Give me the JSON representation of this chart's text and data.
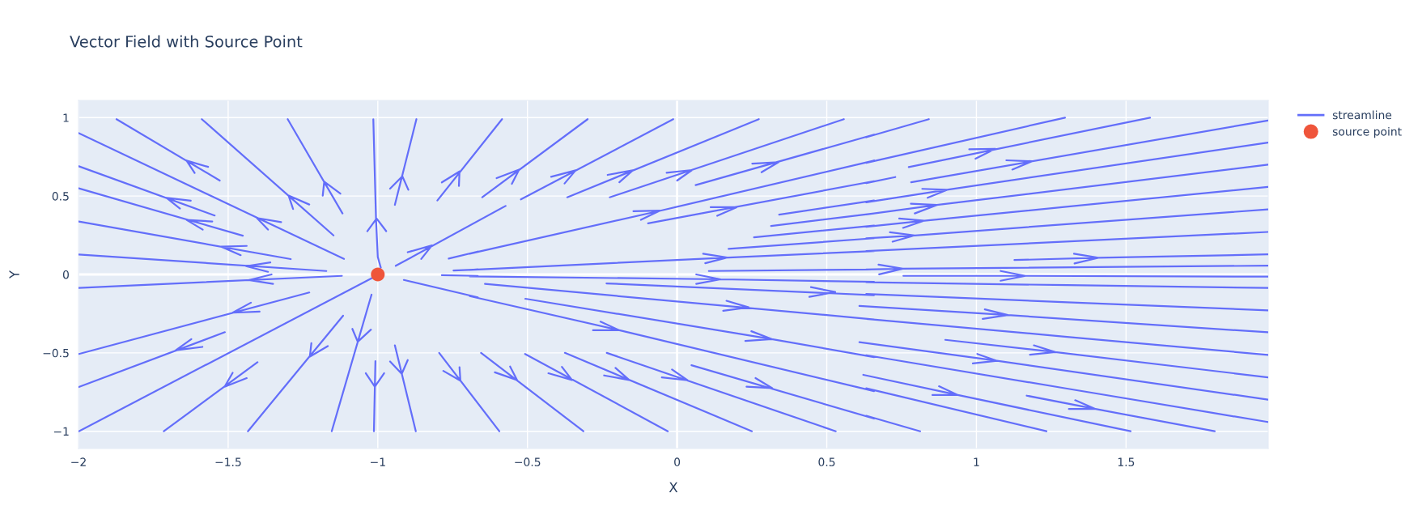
{
  "chart_data": {
    "type": "line",
    "title": "Vector Field with Source Point",
    "xlabel": "X",
    "ylabel": "Y",
    "xlim": [
      -2,
      1.975
    ],
    "ylim": [
      -1.11,
      1.11
    ],
    "xticks": [
      {
        "value": -2,
        "label": "−2"
      },
      {
        "value": -1.5,
        "label": "−1.5"
      },
      {
        "value": -1,
        "label": "−1"
      },
      {
        "value": -0.5,
        "label": "−0.5"
      },
      0,
      0.5,
      1,
      1.5
    ],
    "yticks": [
      {
        "value": -1,
        "label": "−1"
      },
      {
        "value": -0.5,
        "label": "−0.5"
      },
      0,
      0.5,
      1
    ],
    "grid": true,
    "legend": "top right",
    "series": [
      {
        "name": "streamline",
        "type": "line",
        "color": "#636efa",
        "marker": "none",
        "x": [
          -1.873,
          -1.528,
          null,
          -1.567,
          -1.639,
          -1.612,
          null,
          -1.588,
          -1.148,
          null,
          -1.229,
          -1.298,
          -1.283,
          null,
          -1.301,
          -1.118,
          null,
          -1.125,
          -1.179,
          -1.184,
          null,
          -1.015,
          -1.006,
          -1.0,
          -0.99,
          null,
          -1.035,
          -1.004,
          -0.972,
          null,
          -0.871,
          -0.943,
          null,
          -0.959,
          -0.918,
          -0.898,
          null,
          -0.585,
          -0.801,
          null,
          -0.786,
          -0.727,
          -0.729,
          null,
          -0.94,
          -0.573,
          null,
          -0.9,
          -0.819,
          -0.855,
          null,
          -1.999,
          -1.113,
          null,
          -1.323,
          -1.404,
          -1.367,
          null,
          -1.999,
          -1.545,
          null,
          -1.625,
          -1.706,
          -1.661,
          null,
          -1.999,
          -1.451,
          null,
          -1.553,
          -1.639,
          -1.585,
          null,
          -1.999,
          -1.291,
          null,
          -1.438,
          -1.523,
          -1.458,
          null,
          -1.999,
          -1.172,
          null,
          -1.359,
          -1.44,
          -1.367,
          null,
          -1.999,
          -1.12,
          null,
          -1.355,
          -1.431,
          -1.35,
          null,
          -1.999,
          -1.229,
          null,
          -1.424,
          -1.485,
          -1.395,
          null,
          -1.999,
          -1.511,
          null,
          -1.623,
          -1.675,
          -1.586,
          null,
          -1.999,
          -1.008,
          null,
          -1.715,
          -1.402,
          null,
          -1.485,
          -1.512,
          -1.438,
          null,
          -1.434,
          -1.116,
          null,
          -1.222,
          -1.227,
          -1.167,
          null,
          -1.154,
          -1.021,
          null,
          -1.085,
          -1.067,
          -1.023,
          null,
          -1.013,
          -1.008,
          null,
          -1.04,
          -1.01,
          -0.979,
          null,
          -0.873,
          -0.943,
          null,
          -0.959,
          -0.92,
          -0.9,
          null,
          -0.795,
          -0.594,
          null,
          -0.781,
          -0.724,
          -0.727,
          null,
          -0.913,
          -0.666,
          null,
          -0.763,
          -0.666,
          null,
          -0.747,
          -0.666,
          null,
          -0.786,
          -0.666,
          null,
          -0.651,
          -0.299,
          null,
          -0.603,
          -0.528,
          -0.552,
          null,
          -0.522,
          -0.013,
          null,
          -0.421,
          -0.339,
          -0.376,
          null,
          -0.367,
          0.273,
          null,
          -0.232,
          -0.148,
          -0.193,
          null,
          -0.225,
          0.557,
          null,
          -0.035,
          0.05,
          0.0,
          null,
          0.062,
          0.658,
          null,
          0.251,
          0.339,
          0.282,
          null,
          -0.693,
          -0.053,
          0.658,
          null,
          -0.146,
          -0.058,
          -0.121,
          null,
          -0.097,
          0.658,
          null,
          0.112,
          0.199,
          0.134,
          null,
          0.341,
          0.658,
          null,
          0.314,
          0.658,
          null,
          0.257,
          0.658,
          null,
          0.172,
          0.658,
          null,
          -0.693,
          0.172,
          0.658,
          null,
          0.087,
          0.167,
          0.094,
          null,
          0.106,
          0.658,
          null,
          -0.693,
          0.145,
          0.658,
          null,
          0.064,
          0.145,
          0.064,
          null,
          -0.236,
          0.658,
          null,
          0.447,
          0.528,
          0.442,
          null,
          -0.642,
          0.658,
          null,
          0.165,
          0.239,
          0.154,
          null,
          -0.693,
          -0.193,
          0.658,
          null,
          -0.256,
          -0.193,
          -0.281,
          null,
          -0.507,
          0.316,
          0.658,
          null,
          0.248,
          0.316,
          0.228,
          null,
          -0.655,
          -0.313,
          null,
          -0.558,
          -0.535,
          -0.609,
          null,
          -0.508,
          -0.031,
          null,
          -0.385,
          -0.351,
          -0.43,
          null,
          -0.375,
          0.25,
          null,
          -0.206,
          -0.16,
          -0.244,
          null,
          -0.235,
          0.53,
          null,
          -0.017,
          0.035,
          -0.051,
          null,
          0.048,
          0.658,
          null,
          0.262,
          0.318,
          0.232,
          null,
          0.632,
          0.841,
          null,
          0.632,
          1.296,
          null,
          0.976,
          1.063,
          0.997,
          null,
          0.774,
          1.58,
          null,
          1.1,
          1.186,
          1.12,
          null,
          0.632,
          0.729,
          null,
          0.782,
          1.974,
          null,
          0.632,
          0.902,
          1.974,
          null,
          0.819,
          0.902,
          0.837,
          null,
          0.632,
          0.868,
          1.974,
          null,
          0.781,
          0.868,
          0.794,
          null,
          0.632,
          0.826,
          1.974,
          null,
          0.742,
          0.826,
          0.755,
          null,
          0.632,
          0.794,
          1.974,
          null,
          0.711,
          0.794,
          0.72,
          null,
          0.632,
          1.974,
          null,
          1.127,
          1.407,
          1.974,
          null,
          1.326,
          1.407,
          1.328,
          null,
          0.632,
          0.754,
          1.974,
          null,
          0.673,
          0.754,
          0.675,
          null,
          0.756,
          1.164,
          1.974,
          null,
          1.081,
          1.164,
          1.081,
          null,
          0.632,
          1.303,
          1.974,
          null,
          0.632,
          1.303,
          1.974,
          null,
          0.609,
          1.105,
          1.974,
          null,
          1.028,
          1.105,
          1.021,
          null,
          0.632,
          1.303,
          1.974,
          null,
          0.896,
          1.263,
          1.974,
          null,
          1.192,
          1.263,
          1.179,
          null,
          0.609,
          1.069,
          1.974,
          null,
          1.003,
          1.069,
          0.988,
          null,
          0.632,
          1.303,
          1.974,
          null,
          0.622,
          0.938,
          1.515,
          null,
          0.875,
          0.938,
          0.853,
          null,
          0.632,
          1.234,
          null,
          0.632,
          0.812,
          null,
          1.168,
          1.398,
          1.796,
          null,
          1.33,
          1.398,
          1.309
        ],
        "values": [
          0.99,
          0.599,
          null,
          0.686,
          0.726,
          0.647,
          null,
          0.99,
          0.249,
          null,
          0.446,
          0.503,
          0.417,
          null,
          0.99,
          0.389,
          null,
          0.516,
          0.592,
          0.503,
          null,
          0.99,
          0.352,
          0.111,
          0.043,
          null,
          0.276,
          0.357,
          0.276,
          null,
          0.99,
          0.444,
          null,
          0.547,
          0.626,
          0.54,
          null,
          0.99,
          0.472,
          null,
          0.587,
          0.657,
          0.564,
          null,
          0.055,
          0.437,
          null,
          0.142,
          0.185,
          0.099,
          null,
          0.901,
          0.099,
          null,
          0.334,
          0.36,
          0.286,
          null,
          0.69,
          0.376,
          null,
          0.47,
          0.489,
          0.42,
          null,
          0.549,
          0.247,
          null,
          0.338,
          0.348,
          0.286,
          null,
          0.338,
          0.098,
          null,
          0.182,
          0.177,
          0.123,
          null,
          0.127,
          0.022,
          null,
          0.077,
          0.053,
          0.017,
          null,
          -0.086,
          -0.009,
          null,
          0.0,
          -0.036,
          -0.06,
          null,
          -0.507,
          -0.115,
          null,
          -0.18,
          -0.244,
          -0.237,
          null,
          -0.718,
          -0.368,
          null,
          -0.412,
          -0.483,
          -0.462,
          null,
          -1.0,
          -0.012,
          null,
          -1.0,
          -0.56,
          null,
          -0.627,
          -0.716,
          -0.661,
          null,
          -1.0,
          -0.263,
          null,
          -0.438,
          -0.524,
          -0.457,
          null,
          -1.0,
          -0.129,
          null,
          -0.347,
          -0.429,
          -0.352,
          null,
          -1.0,
          -0.553,
          null,
          -0.63,
          -0.716,
          -0.63,
          null,
          -1.0,
          -0.452,
          null,
          -0.555,
          -0.634,
          -0.546,
          null,
          -0.5,
          -1.0,
          null,
          -0.615,
          -0.678,
          -0.592,
          null,
          -0.035,
          -0.146,
          null,
          0.101,
          0.146,
          null,
          0.025,
          0.032,
          null,
          -0.005,
          -0.009,
          null,
          0.492,
          0.99,
          null,
          0.614,
          0.669,
          0.578,
          null,
          0.479,
          0.99,
          null,
          0.623,
          0.664,
          0.58,
          null,
          0.492,
          0.99,
          null,
          0.635,
          0.664,
          0.588,
          null,
          0.492,
          0.99,
          null,
          0.649,
          0.666,
          0.599,
          null,
          0.57,
          0.892,
          null,
          0.707,
          0.716,
          0.652,
          null,
          0.132,
          0.408,
          0.726,
          null,
          0.403,
          0.407,
          0.348,
          null,
          0.326,
          0.595,
          null,
          0.429,
          0.429,
          0.374,
          null,
          0.381,
          0.472,
          null,
          0.309,
          0.389,
          null,
          0.237,
          0.312,
          null,
          0.163,
          0.231,
          null,
          0.029,
          0.108,
          0.149,
          null,
          0.132,
          0.108,
          0.072,
          null,
          0.022,
          0.032,
          null,
          -0.012,
          -0.031,
          -0.047,
          null,
          0.0,
          -0.031,
          -0.06,
          null,
          -0.057,
          -0.132,
          null,
          -0.081,
          -0.112,
          -0.143,
          null,
          -0.06,
          -0.287,
          null,
          -0.168,
          -0.21,
          -0.232,
          null,
          -0.138,
          -0.356,
          -0.744,
          null,
          -0.301,
          -0.356,
          -0.356,
          null,
          -0.155,
          -0.412,
          -0.527,
          null,
          -0.362,
          -0.412,
          -0.424,
          null,
          -0.5,
          -1.0,
          null,
          -0.587,
          -0.673,
          -0.624,
          null,
          -0.507,
          -1.0,
          null,
          -0.589,
          -0.673,
          -0.63,
          null,
          -0.5,
          -1.0,
          null,
          -0.596,
          -0.673,
          -0.644,
          null,
          -0.5,
          -1.0,
          null,
          -0.606,
          -0.675,
          -0.656,
          null,
          -0.579,
          -0.919,
          null,
          -0.661,
          -0.725,
          -0.716,
          null,
          0.875,
          0.99,
          null,
          0.712,
          1.0,
          null,
          0.798,
          0.801,
          0.738,
          null,
          0.685,
          1.0,
          null,
          0.728,
          0.722,
          0.669,
          null,
          0.583,
          0.621,
          null,
          0.588,
          0.982,
          null,
          0.46,
          0.54,
          0.841,
          null,
          0.546,
          0.54,
          0.489,
          null,
          0.383,
          0.443,
          0.7,
          null,
          0.451,
          0.443,
          0.389,
          null,
          0.304,
          0.343,
          0.558,
          null,
          0.357,
          0.343,
          0.297,
          null,
          0.23,
          0.249,
          0.415,
          null,
          0.269,
          0.249,
          0.209,
          null,
          0.149,
          0.271,
          null,
          0.092,
          0.106,
          0.128,
          null,
          0.132,
          0.106,
          0.07,
          null,
          0.032,
          0.037,
          0.056,
          null,
          0.063,
          0.037,
          0.001,
          null,
          -0.009,
          -0.009,
          -0.014,
          null,
          0.022,
          -0.009,
          -0.04,
          null,
          -0.05,
          -0.068,
          -0.086,
          null,
          -0.124,
          -0.177,
          -0.229,
          null,
          -0.201,
          -0.259,
          -0.369,
          null,
          -0.223,
          -0.259,
          -0.283,
          null,
          -0.283,
          -0.398,
          -0.513,
          null,
          -0.417,
          -0.495,
          -0.656,
          null,
          -0.452,
          -0.495,
          -0.512,
          null,
          -0.432,
          -0.551,
          -0.798,
          null,
          -0.507,
          -0.551,
          -0.567,
          null,
          -0.515,
          -0.728,
          -0.941,
          null,
          -0.64,
          -0.769,
          -1.0,
          null,
          -0.713,
          -0.769,
          -0.769,
          null,
          -0.726,
          -1.0,
          null,
          -0.901,
          -1.0,
          null,
          -0.773,
          -0.858,
          -1.0,
          null,
          -0.802,
          -0.858,
          -0.858
        ]
      },
      {
        "name": "source point",
        "type": "scatter",
        "color": "#ef553b",
        "marker": "circle",
        "x": [
          -1.0
        ],
        "values": [
          0.0
        ]
      }
    ]
  }
}
